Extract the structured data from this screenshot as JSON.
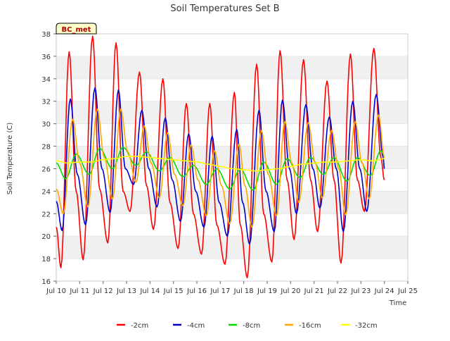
{
  "chart_data": {
    "type": "line",
    "title": "Soil Temperatures Set B",
    "xlabel": "Time",
    "ylabel": "Soil Temperature (C)",
    "site_label": "BC_met",
    "xlim": [
      10,
      25
    ],
    "ylim": [
      16,
      38
    ],
    "grid": "horizontal bands",
    "legend_position": "bottom",
    "x_ticks": [
      {
        "value": 10,
        "label": "Jul 10"
      },
      {
        "value": 11,
        "label": "Jul 11"
      },
      {
        "value": 12,
        "label": "Jul 12"
      },
      {
        "value": 13,
        "label": "Jul 13"
      },
      {
        "value": 14,
        "label": "Jul 14"
      },
      {
        "value": 15,
        "label": "Jul 15"
      },
      {
        "value": 16,
        "label": "Jul 16"
      },
      {
        "value": 17,
        "label": "Jul 17"
      },
      {
        "value": 18,
        "label": "Jul 18"
      },
      {
        "value": 19,
        "label": "Jul 19"
      },
      {
        "value": 20,
        "label": "Jul 20"
      },
      {
        "value": 21,
        "label": "Jul 21"
      },
      {
        "value": 22,
        "label": "Jul 22"
      },
      {
        "value": 23,
        "label": "Jul 23"
      },
      {
        "value": 24,
        "label": "Jul 24"
      },
      {
        "value": 25,
        "label": "Jul 25"
      }
    ],
    "y_ticks": [
      16,
      18,
      20,
      22,
      24,
      26,
      28,
      30,
      32,
      34,
      36,
      38
    ],
    "series": [
      {
        "name": "-2cm",
        "color": "#ff0000",
        "points": [
          [
            10.0,
            20.8
          ],
          [
            10.2,
            17.2
          ],
          [
            10.55,
            36.4
          ],
          [
            10.85,
            24.0
          ],
          [
            11.15,
            17.9
          ],
          [
            11.55,
            37.8
          ],
          [
            11.85,
            24.2
          ],
          [
            12.2,
            19.4
          ],
          [
            12.55,
            37.2
          ],
          [
            12.85,
            24.0
          ],
          [
            13.15,
            22.2
          ],
          [
            13.55,
            34.6
          ],
          [
            13.85,
            24.5
          ],
          [
            14.15,
            20.6
          ],
          [
            14.55,
            34.0
          ],
          [
            14.85,
            23.0
          ],
          [
            15.2,
            18.9
          ],
          [
            15.55,
            31.8
          ],
          [
            15.85,
            22.0
          ],
          [
            16.2,
            18.4
          ],
          [
            16.55,
            31.8
          ],
          [
            16.85,
            21.0
          ],
          [
            17.2,
            17.5
          ],
          [
            17.6,
            32.8
          ],
          [
            17.85,
            21.0
          ],
          [
            18.15,
            16.3
          ],
          [
            18.55,
            35.3
          ],
          [
            18.85,
            22.0
          ],
          [
            19.2,
            17.7
          ],
          [
            19.55,
            36.5
          ],
          [
            19.85,
            25.0
          ],
          [
            20.15,
            19.7
          ],
          [
            20.55,
            35.7
          ],
          [
            20.85,
            25.0
          ],
          [
            21.15,
            20.4
          ],
          [
            21.55,
            33.8
          ],
          [
            21.85,
            25.0
          ],
          [
            22.15,
            17.6
          ],
          [
            22.55,
            36.2
          ],
          [
            22.85,
            25.0
          ],
          [
            23.15,
            22.2
          ],
          [
            23.55,
            36.7
          ],
          [
            23.85,
            27.0
          ],
          [
            24.0,
            25.0
          ]
        ]
      },
      {
        "name": "-4cm",
        "color": "#0000cc",
        "points": [
          [
            10.0,
            23.1
          ],
          [
            10.25,
            20.5
          ],
          [
            10.6,
            32.2
          ],
          [
            10.9,
            25.5
          ],
          [
            11.25,
            21.0
          ],
          [
            11.65,
            33.2
          ],
          [
            11.95,
            26.0
          ],
          [
            12.3,
            22.1
          ],
          [
            12.65,
            33.0
          ],
          [
            12.95,
            26.0
          ],
          [
            13.3,
            24.6
          ],
          [
            13.65,
            31.2
          ],
          [
            13.95,
            26.0
          ],
          [
            14.3,
            22.6
          ],
          [
            14.65,
            30.5
          ],
          [
            14.95,
            25.0
          ],
          [
            15.3,
            21.3
          ],
          [
            15.65,
            29.1
          ],
          [
            15.95,
            24.0
          ],
          [
            16.3,
            20.8
          ],
          [
            16.65,
            28.9
          ],
          [
            16.95,
            23.0
          ],
          [
            17.3,
            20.0
          ],
          [
            17.7,
            29.5
          ],
          [
            17.95,
            23.0
          ],
          [
            18.25,
            19.3
          ],
          [
            18.65,
            31.2
          ],
          [
            18.95,
            24.0
          ],
          [
            19.3,
            20.4
          ],
          [
            19.65,
            32.1
          ],
          [
            19.95,
            26.0
          ],
          [
            20.25,
            22.0
          ],
          [
            20.65,
            31.7
          ],
          [
            20.95,
            26.0
          ],
          [
            21.25,
            22.5
          ],
          [
            21.65,
            30.6
          ],
          [
            21.95,
            26.0
          ],
          [
            22.25,
            20.4
          ],
          [
            22.65,
            32.0
          ],
          [
            22.95,
            26.0
          ],
          [
            23.25,
            22.2
          ],
          [
            23.65,
            32.6
          ],
          [
            23.95,
            27.0
          ],
          [
            24.0,
            26.0
          ]
        ]
      },
      {
        "name": "-8cm",
        "color": "#00dd00",
        "points": [
          [
            10.0,
            26.5
          ],
          [
            10.4,
            25.1
          ],
          [
            10.85,
            27.3
          ],
          [
            11.4,
            25.5
          ],
          [
            11.85,
            27.8
          ],
          [
            12.4,
            26.0
          ],
          [
            12.85,
            27.9
          ],
          [
            13.4,
            26.3
          ],
          [
            13.85,
            27.5
          ],
          [
            14.4,
            25.8
          ],
          [
            14.85,
            27.0
          ],
          [
            15.4,
            25.3
          ],
          [
            15.85,
            26.3
          ],
          [
            16.4,
            24.6
          ],
          [
            16.85,
            26.0
          ],
          [
            17.4,
            24.2
          ],
          [
            17.85,
            26.0
          ],
          [
            18.4,
            24.1
          ],
          [
            18.85,
            26.6
          ],
          [
            19.4,
            24.6
          ],
          [
            19.85,
            26.9
          ],
          [
            20.4,
            25.2
          ],
          [
            20.85,
            27.0
          ],
          [
            21.4,
            25.5
          ],
          [
            21.85,
            27.0
          ],
          [
            22.4,
            24.9
          ],
          [
            22.85,
            27.0
          ],
          [
            23.4,
            25.4
          ],
          [
            23.85,
            27.6
          ],
          [
            24.0,
            27.2
          ]
        ]
      },
      {
        "name": "-16cm",
        "color": "#ffa500",
        "points": [
          [
            10.0,
            24.2
          ],
          [
            10.3,
            22.0
          ],
          [
            10.7,
            30.4
          ],
          [
            11.0,
            26.5
          ],
          [
            11.35,
            22.6
          ],
          [
            11.75,
            31.3
          ],
          [
            12.05,
            27.0
          ],
          [
            12.4,
            23.3
          ],
          [
            12.75,
            31.3
          ],
          [
            13.05,
            27.5
          ],
          [
            13.4,
            24.8
          ],
          [
            13.75,
            29.8
          ],
          [
            14.05,
            26.5
          ],
          [
            14.4,
            23.4
          ],
          [
            14.75,
            29.2
          ],
          [
            15.05,
            25.5
          ],
          [
            15.4,
            22.7
          ],
          [
            15.75,
            28.1
          ],
          [
            16.05,
            25.0
          ],
          [
            16.4,
            21.8
          ],
          [
            16.75,
            27.6
          ],
          [
            17.05,
            24.5
          ],
          [
            17.4,
            21.1
          ],
          [
            17.8,
            28.2
          ],
          [
            18.05,
            24.5
          ],
          [
            18.35,
            20.8
          ],
          [
            18.75,
            29.4
          ],
          [
            19.05,
            25.5
          ],
          [
            19.4,
            21.8
          ],
          [
            19.75,
            30.2
          ],
          [
            20.05,
            26.5
          ],
          [
            20.35,
            23.0
          ],
          [
            20.75,
            30.1
          ],
          [
            21.05,
            26.5
          ],
          [
            21.35,
            23.4
          ],
          [
            21.75,
            29.4
          ],
          [
            22.05,
            26.0
          ],
          [
            22.35,
            21.9
          ],
          [
            22.75,
            30.2
          ],
          [
            23.05,
            26.5
          ],
          [
            23.35,
            23.3
          ],
          [
            23.75,
            30.8
          ],
          [
            24.0,
            27.0
          ]
        ]
      },
      {
        "name": "-32cm",
        "color": "#ffff00",
        "points": [
          [
            10.0,
            26.7
          ],
          [
            10.5,
            26.5
          ],
          [
            11.0,
            26.6
          ],
          [
            11.5,
            26.6
          ],
          [
            12.0,
            26.8
          ],
          [
            12.5,
            26.9
          ],
          [
            13.0,
            27.1
          ],
          [
            13.5,
            27.1
          ],
          [
            14.0,
            27.0
          ],
          [
            14.5,
            26.9
          ],
          [
            15.0,
            26.8
          ],
          [
            15.5,
            26.7
          ],
          [
            16.0,
            26.6
          ],
          [
            16.5,
            26.4
          ],
          [
            17.0,
            26.2
          ],
          [
            17.5,
            26.0
          ],
          [
            18.0,
            25.9
          ],
          [
            18.5,
            25.8
          ],
          [
            19.0,
            25.9
          ],
          [
            19.5,
            26.0
          ],
          [
            20.0,
            26.2
          ],
          [
            20.5,
            26.4
          ],
          [
            21.0,
            26.5
          ],
          [
            21.5,
            26.6
          ],
          [
            22.0,
            26.6
          ],
          [
            22.5,
            26.7
          ],
          [
            23.0,
            26.8
          ],
          [
            23.5,
            26.7
          ],
          [
            24.0,
            26.9
          ]
        ]
      }
    ]
  }
}
